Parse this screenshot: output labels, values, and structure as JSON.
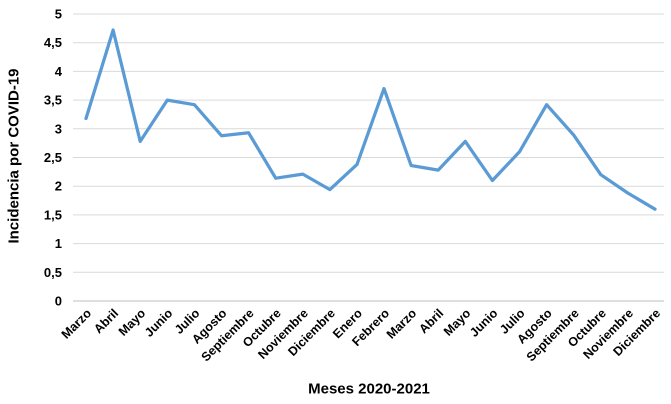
{
  "chart_data": {
    "type": "line",
    "title": "",
    "xlabel": "Meses 2020-2021",
    "ylabel": "Incidencia por COVID-19",
    "ylim": [
      0,
      5
    ],
    "ytick_step": 0.5,
    "ytick_labels": [
      "0",
      "0,5",
      "1",
      "1,5",
      "2",
      "2,5",
      "3",
      "3,5",
      "4",
      "4,5",
      "5"
    ],
    "categories": [
      "Marzo",
      "Abril",
      "Mayo",
      "Junio",
      "Julio",
      "Agosto",
      "Septiembre",
      "Octubre",
      "Noviembre",
      "Diciembre",
      "Enero",
      "Febrero",
      "Marzo",
      "Abril",
      "Mayo",
      "Junio",
      "Julio",
      "Agosto",
      "Septiembre",
      "Octubre",
      "Noviembre",
      "Diciembre"
    ],
    "values": [
      3.18,
      4.72,
      2.78,
      3.5,
      3.42,
      2.88,
      2.93,
      2.14,
      2.21,
      1.94,
      2.38,
      3.7,
      2.36,
      2.28,
      2.78,
      2.1,
      2.6,
      3.42,
      2.89,
      2.2,
      1.88,
      1.6
    ],
    "grid": true,
    "legend": false,
    "colors": {
      "line": "#5B9BD5",
      "gridline": "#D9D9D9",
      "axis_line": "#BFBFBF",
      "text": "#000000",
      "background": "#FFFFFF"
    }
  }
}
